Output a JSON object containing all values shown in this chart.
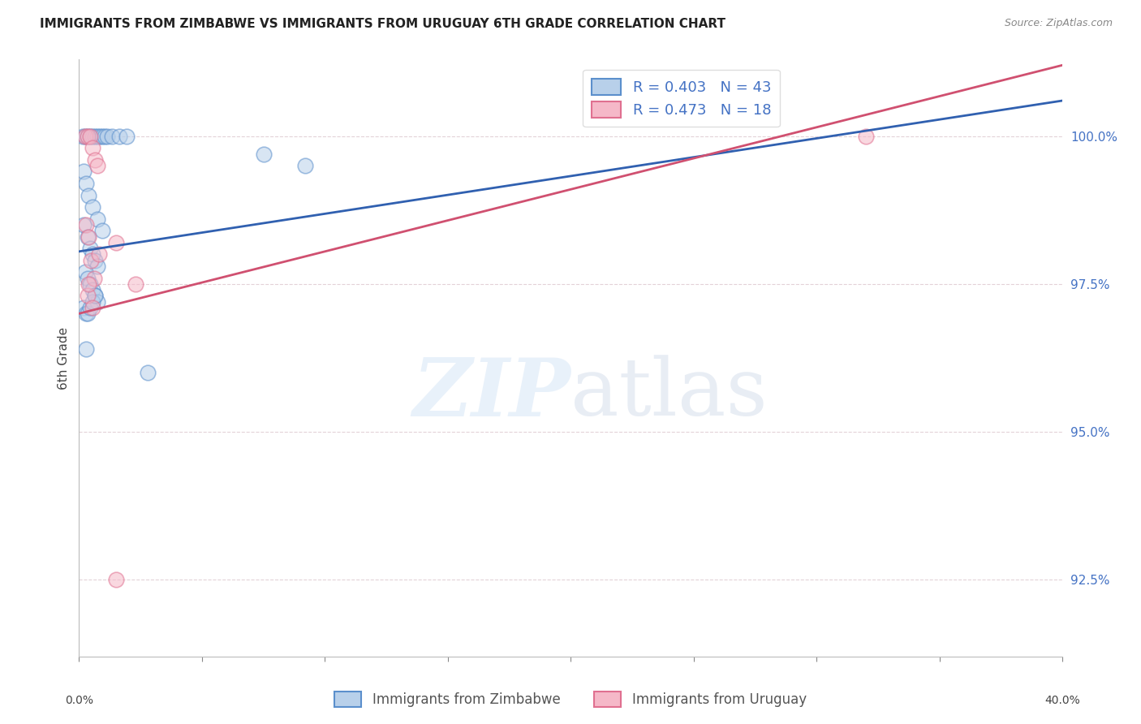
{
  "title": "IMMIGRANTS FROM ZIMBABWE VS IMMIGRANTS FROM URUGUAY 6TH GRADE CORRELATION CHART",
  "source": "Source: ZipAtlas.com",
  "ylabel": "6th Grade",
  "yticks": [
    92.5,
    95.0,
    97.5,
    100.0
  ],
  "ytick_labels": [
    "92.5%",
    "95.0%",
    "97.5%",
    "100.0%"
  ],
  "xlim": [
    0.0,
    40.0
  ],
  "ylim": [
    91.2,
    101.3
  ],
  "blue_color": "#b8d0ea",
  "blue_edge_color": "#5b8fcc",
  "pink_color": "#f5b8c8",
  "pink_edge_color": "#e07090",
  "blue_line_color": "#3060b0",
  "pink_line_color": "#d05070",
  "blue_line_x": [
    0.0,
    40.0
  ],
  "blue_line_y": [
    98.05,
    100.6
  ],
  "pink_line_x": [
    0.0,
    40.0
  ],
  "pink_line_y": [
    97.0,
    101.2
  ],
  "zimbabwe_x": [
    0.15,
    0.25,
    0.35,
    0.45,
    0.55,
    0.65,
    0.75,
    0.85,
    0.95,
    1.05,
    1.15,
    1.35,
    1.65,
    1.95,
    0.2,
    0.3,
    0.4,
    0.55,
    0.75,
    0.95,
    0.2,
    0.35,
    0.45,
    0.55,
    0.65,
    0.75,
    0.25,
    0.35,
    0.45,
    0.55,
    0.65,
    0.75,
    0.2,
    0.3,
    0.35,
    0.45,
    0.55,
    0.65,
    0.3,
    2.8,
    7.5,
    9.2
  ],
  "zimbabwe_y": [
    100.0,
    100.0,
    100.0,
    100.0,
    100.0,
    100.0,
    100.0,
    100.0,
    100.0,
    100.0,
    100.0,
    100.0,
    100.0,
    100.0,
    99.4,
    99.2,
    99.0,
    98.8,
    98.6,
    98.4,
    98.5,
    98.3,
    98.1,
    98.0,
    97.9,
    97.8,
    97.7,
    97.6,
    97.5,
    97.4,
    97.3,
    97.2,
    97.1,
    97.0,
    97.0,
    97.1,
    97.2,
    97.3,
    96.4,
    96.0,
    99.7,
    99.5
  ],
  "uruguay_x": [
    0.25,
    0.35,
    0.45,
    0.55,
    0.65,
    0.75,
    0.3,
    0.4,
    0.5,
    0.6,
    0.35,
    0.55,
    1.5,
    0.8,
    0.4,
    2.3,
    32.0,
    1.5
  ],
  "uruguay_y": [
    100.0,
    100.0,
    100.0,
    99.8,
    99.6,
    99.5,
    98.5,
    98.3,
    97.9,
    97.6,
    97.3,
    97.1,
    98.2,
    98.0,
    97.5,
    97.5,
    100.0,
    92.5
  ],
  "marker_size": 180,
  "marker_alpha": 0.55,
  "marker_lw": 1.2,
  "grid_color": "#d8c0c8",
  "grid_alpha": 0.7,
  "ytick_color": "#4472c4",
  "ytick_fontsize": 11,
  "title_fontsize": 11,
  "source_fontsize": 9,
  "ylabel_fontsize": 11
}
